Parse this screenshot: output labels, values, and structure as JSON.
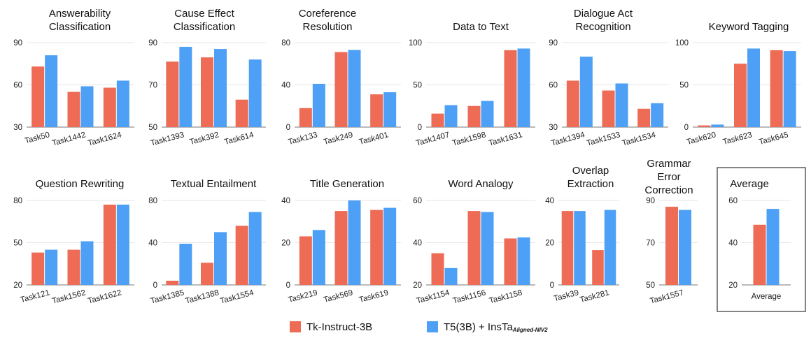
{
  "colors": {
    "tk": "#ee6b55",
    "t5": "#4da0f5",
    "grid": "#e5e5e5",
    "axis": "#555555"
  },
  "legend": {
    "tk_label": "Tk-Instruct-3B",
    "t5_label_main": "T5(3B) + InsTa",
    "t5_label_sub": "Aligned-NIV2"
  },
  "chart_data": [
    {
      "type": "bar",
      "title": [
        "Answerability",
        "Classification"
      ],
      "ylim": [
        30,
        90
      ],
      "yticks": [
        30,
        60,
        90
      ],
      "categories": [
        "Task50",
        "Task1442",
        "Task1624"
      ],
      "series": [
        {
          "name": "Tk-Instruct-3B",
          "values": [
            73,
            55,
            58
          ]
        },
        {
          "name": "T5(3B) + InsTa Aligned-NIV2",
          "values": [
            81,
            59,
            63
          ]
        }
      ]
    },
    {
      "type": "bar",
      "title": [
        "Cause Effect",
        "Classification"
      ],
      "ylim": [
        50,
        90
      ],
      "yticks": [
        50,
        70,
        90
      ],
      "categories": [
        "Task1393",
        "Task392",
        "Task614"
      ],
      "series": [
        {
          "name": "Tk-Instruct-3B",
          "values": [
            81,
            83,
            63
          ]
        },
        {
          "name": "T5(3B) + InsTa Aligned-NIV2",
          "values": [
            88,
            87,
            82
          ]
        }
      ]
    },
    {
      "type": "bar",
      "title": [
        "Coreference",
        "Resolution"
      ],
      "ylim": [
        0,
        80
      ],
      "yticks": [
        0,
        40,
        80
      ],
      "categories": [
        "Task133",
        "Task249",
        "Task401"
      ],
      "series": [
        {
          "name": "Tk-Instruct-3B",
          "values": [
            18,
            71,
            31
          ]
        },
        {
          "name": "T5(3B) + InsTa Aligned-NIV2",
          "values": [
            41,
            73,
            33
          ]
        }
      ]
    },
    {
      "type": "bar",
      "title": [
        "Data to Text"
      ],
      "ylim": [
        0,
        100
      ],
      "yticks": [
        0,
        50,
        100
      ],
      "categories": [
        "Task1407",
        "Task1598",
        "Task1631"
      ],
      "series": [
        {
          "name": "Tk-Instruct-3B",
          "values": [
            16,
            25,
            91
          ]
        },
        {
          "name": "T5(3B) + InsTa Aligned-NIV2",
          "values": [
            26,
            31,
            93
          ]
        }
      ]
    },
    {
      "type": "bar",
      "title": [
        "Dialogue Act",
        "Recognition"
      ],
      "ylim": [
        30,
        90
      ],
      "yticks": [
        30,
        60,
        90
      ],
      "categories": [
        "Task1394",
        "Task1533",
        "Task1534"
      ],
      "series": [
        {
          "name": "Tk-Instruct-3B",
          "values": [
            63,
            56,
            43
          ]
        },
        {
          "name": "T5(3B) + InsTa Aligned-NIV2",
          "values": [
            80,
            61,
            47
          ]
        }
      ]
    },
    {
      "type": "bar",
      "title": [
        "Keyword Tagging"
      ],
      "ylim": [
        0,
        100
      ],
      "yticks": [
        0,
        50,
        100
      ],
      "categories": [
        "Task620",
        "Task623",
        "Task645"
      ],
      "series": [
        {
          "name": "Tk-Instruct-3B",
          "values": [
            2,
            75,
            91
          ]
        },
        {
          "name": "T5(3B) + InsTa Aligned-NIV2",
          "values": [
            3,
            93,
            90
          ]
        }
      ]
    },
    {
      "type": "bar",
      "title": [
        "Question Rewriting"
      ],
      "ylim": [
        20,
        80
      ],
      "yticks": [
        20,
        50,
        80
      ],
      "categories": [
        "Task121",
        "Task1562",
        "Task1622"
      ],
      "series": [
        {
          "name": "Tk-Instruct-3B",
          "values": [
            43,
            45,
            77
          ]
        },
        {
          "name": "T5(3B) + InsTa Aligned-NIV2",
          "values": [
            45,
            51,
            77
          ]
        }
      ]
    },
    {
      "type": "bar",
      "title": [
        "Textual Entailment"
      ],
      "ylim": [
        0,
        80
      ],
      "yticks": [
        0,
        40,
        80
      ],
      "categories": [
        "Task1385",
        "Task1388",
        "Task1554"
      ],
      "series": [
        {
          "name": "Tk-Instruct-3B",
          "values": [
            4,
            21,
            56
          ]
        },
        {
          "name": "T5(3B) + InsTa Aligned-NIV2",
          "values": [
            39,
            50,
            69
          ]
        }
      ]
    },
    {
      "type": "bar",
      "title": [
        "Title Generation"
      ],
      "ylim": [
        0,
        40
      ],
      "yticks": [
        0,
        20,
        40
      ],
      "categories": [
        "Task219",
        "Task569",
        "Task619"
      ],
      "series": [
        {
          "name": "Tk-Instruct-3B",
          "values": [
            23,
            35,
            35.5
          ]
        },
        {
          "name": "T5(3B) + InsTa Aligned-NIV2",
          "values": [
            26,
            40,
            36.5
          ]
        }
      ]
    },
    {
      "type": "bar",
      "title": [
        "Word Analogy"
      ],
      "ylim": [
        20,
        60
      ],
      "yticks": [
        20,
        40,
        60
      ],
      "categories": [
        "Task1154",
        "Task1156",
        "Task1158"
      ],
      "series": [
        {
          "name": "Tk-Instruct-3B",
          "values": [
            35,
            55,
            42
          ]
        },
        {
          "name": "T5(3B) + InsTa Aligned-NIV2",
          "values": [
            28,
            54.5,
            42.5
          ]
        }
      ]
    },
    {
      "type": "bar",
      "title": [
        "Overlap",
        "Extraction"
      ],
      "ylim": [
        0,
        40
      ],
      "yticks": [
        0,
        20,
        40
      ],
      "categories": [
        "Task39",
        "Task281"
      ],
      "series": [
        {
          "name": "Tk-Instruct-3B",
          "values": [
            35,
            16.5
          ]
        },
        {
          "name": "T5(3B) + InsTa Aligned-NIV2",
          "values": [
            35,
            35.5
          ]
        }
      ]
    },
    {
      "type": "bar",
      "title": [
        "Grammar",
        "Error",
        "Correction"
      ],
      "ylim": [
        50,
        90
      ],
      "yticks": [
        50,
        70,
        90
      ],
      "categories": [
        "Task1557"
      ],
      "series": [
        {
          "name": "Tk-Instruct-3B",
          "values": [
            87
          ]
        },
        {
          "name": "T5(3B) + InsTa Aligned-NIV2",
          "values": [
            85.5
          ]
        }
      ]
    },
    {
      "type": "bar",
      "title": [
        "Average"
      ],
      "ylim": [
        20,
        60
      ],
      "yticks": [
        20,
        40,
        60
      ],
      "categories": [
        "Average"
      ],
      "boxed": true,
      "series": [
        {
          "name": "Tk-Instruct-3B",
          "values": [
            48.5
          ]
        },
        {
          "name": "T5(3B) + InsTa Aligned-NIV2",
          "values": [
            56
          ]
        }
      ]
    }
  ]
}
